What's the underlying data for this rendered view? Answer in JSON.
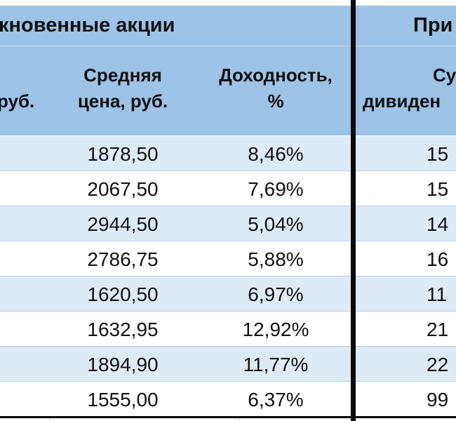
{
  "section_headers": {
    "left": "кновенные акции",
    "right": "При"
  },
  "column_headers": {
    "partial_left": "руб.",
    "avg_price_line1": "Средняя",
    "avg_price_line2": "цена, руб.",
    "yield_line1": "Доходность,",
    "yield_line2": "%",
    "div_sum_line1": "Су",
    "div_sum_line2": "дивиден"
  },
  "rows": [
    {
      "price": "1878,50",
      "yield": "8,46%",
      "div": "15"
    },
    {
      "price": "2067,50",
      "yield": "7,69%",
      "div": "15"
    },
    {
      "price": "2944,50",
      "yield": "5,04%",
      "div": "14"
    },
    {
      "price": "2786,75",
      "yield": "5,88%",
      "div": "16"
    },
    {
      "price": "1620,50",
      "yield": "6,97%",
      "div": "11"
    },
    {
      "price": "1632,95",
      "yield": "12,92%",
      "div": "21"
    },
    {
      "price": "1894,90",
      "yield": "11,77%",
      "div": "22"
    },
    {
      "price": "1555,00",
      "yield": "6,37%",
      "div": "99"
    }
  ],
  "colors": {
    "header_fill": "#9dc3e6",
    "band_fill": "#ddebf7",
    "border": "#0b0b0b"
  }
}
